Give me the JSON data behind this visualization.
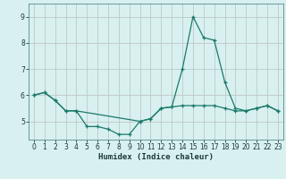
{
  "xlabel": "Humidex (Indice chaleur)",
  "line1_x": [
    0,
    1,
    2,
    3,
    4,
    5,
    6,
    7,
    8,
    9,
    10,
    11,
    12,
    13,
    14,
    15,
    16,
    17,
    18,
    19,
    20,
    21,
    22,
    23
  ],
  "line1_y": [
    6.0,
    6.1,
    5.8,
    5.4,
    5.4,
    4.8,
    4.8,
    4.7,
    4.5,
    4.5,
    5.0,
    5.1,
    5.5,
    5.55,
    7.0,
    9.0,
    8.2,
    8.1,
    6.5,
    5.5,
    5.4,
    5.5,
    5.6,
    5.4
  ],
  "line2_x": [
    0,
    1,
    2,
    3,
    4,
    10,
    11,
    12,
    13,
    14,
    15,
    16,
    17,
    18,
    19,
    20,
    21,
    22,
    23
  ],
  "line2_y": [
    6.0,
    6.1,
    5.8,
    5.4,
    5.4,
    5.0,
    5.1,
    5.5,
    5.55,
    5.6,
    5.6,
    5.6,
    5.6,
    5.5,
    5.4,
    5.4,
    5.5,
    5.6,
    5.4
  ],
  "line_color": "#1a7a6a",
  "bg_color": "#d8f0f0",
  "grid_color": "#c0c8c8",
  "ylim": [
    4.3,
    9.5
  ],
  "xlim": [
    -0.5,
    23.5
  ],
  "yticks": [
    5,
    6,
    7,
    8,
    9
  ],
  "xticks": [
    0,
    1,
    2,
    3,
    4,
    5,
    6,
    7,
    8,
    9,
    10,
    11,
    12,
    13,
    14,
    15,
    16,
    17,
    18,
    19,
    20,
    21,
    22,
    23
  ],
  "tick_fontsize": 5.5,
  "xlabel_fontsize": 6.5
}
